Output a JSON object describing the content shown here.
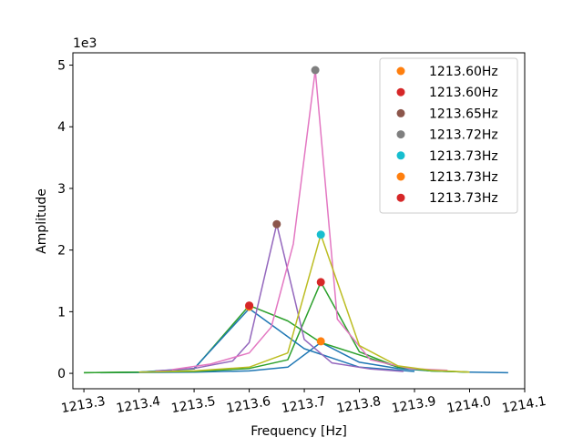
{
  "chart_data": {
    "type": "line",
    "title": "",
    "xlabel": "Frequency [Hz]",
    "ylabel": "Amplitude",
    "y_scale_label": "1e3",
    "xlim": [
      1213.28,
      1214.1
    ],
    "ylim": [
      -0.25,
      5.2
    ],
    "x_ticks": [
      1213.3,
      1213.4,
      1213.5,
      1213.6,
      1213.7,
      1213.8,
      1213.9,
      1214.0,
      1214.1
    ],
    "x_tick_labels": [
      "1213.3",
      "1213.4",
      "1213.5",
      "1213.6",
      "1213.7",
      "1213.8",
      "1213.9",
      "1214.0",
      "1214.1"
    ],
    "y_ticks": [
      0,
      1,
      2,
      3,
      4,
      5
    ],
    "y_tick_labels": [
      "0",
      "1",
      "2",
      "3",
      "4",
      "5"
    ],
    "grid": false,
    "legend_position": "top-right",
    "series": [
      {
        "color": "#1f77b4",
        "x": [
          1213.33,
          1213.4,
          1213.5,
          1213.6,
          1213.67,
          1213.73,
          1213.8,
          1213.87,
          1213.93,
          1214.0,
          1214.07
        ],
        "y": [
          0.01,
          0.015,
          0.02,
          0.04,
          0.1,
          0.5,
          0.18,
          0.08,
          0.04,
          0.02,
          0.01
        ]
      },
      {
        "color": "#2ca02c",
        "x": [
          1213.3,
          1213.4,
          1213.5,
          1213.6,
          1213.67,
          1213.73,
          1213.8,
          1213.87,
          1213.93,
          1214.0
        ],
        "y": [
          0.01,
          0.02,
          0.03,
          0.08,
          0.22,
          1.48,
          0.35,
          0.1,
          0.04,
          0.02
        ]
      },
      {
        "color": "#2ca02c",
        "x": [
          1213.3,
          1213.4,
          1213.5,
          1213.6,
          1213.67,
          1213.73,
          1213.8,
          1213.87,
          1213.93,
          1214.0
        ],
        "y": [
          0.01,
          0.02,
          0.07,
          1.1,
          0.85,
          0.5,
          0.3,
          0.1,
          0.04,
          0.02
        ]
      },
      {
        "color": "#1f77b4",
        "x": [
          1213.4,
          1213.5,
          1213.6,
          1213.7,
          1213.8,
          1213.9
        ],
        "y": [
          0.02,
          0.08,
          1.05,
          0.4,
          0.1,
          0.03
        ]
      },
      {
        "color": "#9467bd",
        "x": [
          1213.43,
          1213.5,
          1213.57,
          1213.6,
          1213.65,
          1213.7,
          1213.75,
          1213.82,
          1213.88
        ],
        "y": [
          0.04,
          0.08,
          0.2,
          0.5,
          2.42,
          0.55,
          0.17,
          0.07,
          0.03
        ]
      },
      {
        "color": "#e377c2",
        "x": [
          1213.46,
          1213.53,
          1213.6,
          1213.64,
          1213.68,
          1213.72,
          1213.76,
          1213.82,
          1213.89,
          1213.96
        ],
        "y": [
          0.06,
          0.15,
          0.33,
          0.75,
          2.1,
          4.92,
          0.88,
          0.22,
          0.08,
          0.05
        ]
      },
      {
        "color": "#bcbd22",
        "x": [
          1213.4,
          1213.5,
          1213.6,
          1213.67,
          1213.73,
          1213.8,
          1213.87,
          1213.93,
          1214.0
        ],
        "y": [
          0.02,
          0.04,
          0.1,
          0.33,
          2.25,
          0.45,
          0.12,
          0.05,
          0.02
        ]
      }
    ],
    "markers": [
      {
        "label": "1213.60Hz",
        "color": "#ff7f0e",
        "x": 1213.6,
        "y": 1.08
      },
      {
        "label": "1213.60Hz",
        "color": "#d62728",
        "x": 1213.6,
        "y": 1.1
      },
      {
        "label": "1213.65Hz",
        "color": "#8c564b",
        "x": 1213.65,
        "y": 2.42
      },
      {
        "label": "1213.72Hz",
        "color": "#7f7f7f",
        "x": 1213.72,
        "y": 4.92
      },
      {
        "label": "1213.73Hz",
        "color": "#17becf",
        "x": 1213.73,
        "y": 2.25
      },
      {
        "label": "1213.73Hz",
        "color": "#ff7f0e",
        "x": 1213.73,
        "y": 0.52
      },
      {
        "label": "1213.73Hz",
        "color": "#d62728",
        "x": 1213.73,
        "y": 1.48
      }
    ]
  }
}
